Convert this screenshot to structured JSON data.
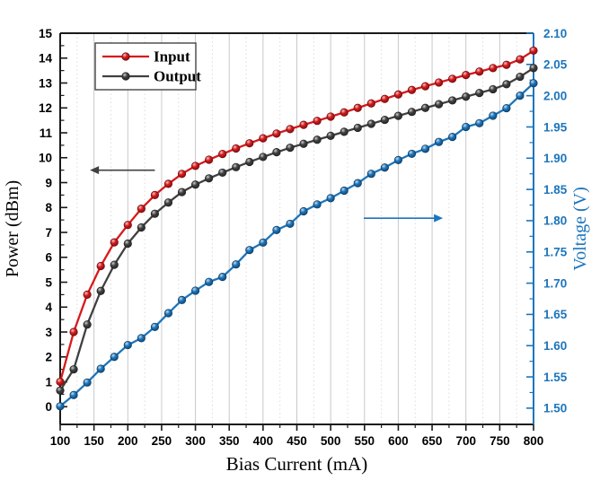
{
  "chart_data": {
    "type": "line",
    "title": "",
    "xlabel": "Bias Current (mA)",
    "ylabel_left": "Power (dBm)",
    "ylabel_right": "Voltage (V)",
    "x": [
      100,
      120,
      140,
      160,
      180,
      200,
      220,
      240,
      260,
      280,
      300,
      320,
      340,
      360,
      380,
      400,
      420,
      440,
      460,
      480,
      500,
      520,
      540,
      560,
      580,
      600,
      620,
      640,
      660,
      680,
      700,
      720,
      740,
      760,
      780,
      800
    ],
    "series": [
      {
        "name": "Input",
        "axis": "left",
        "color": "#d7191c",
        "in_legend": true,
        "values": [
          1.0,
          3.0,
          4.5,
          5.65,
          6.6,
          7.3,
          7.95,
          8.5,
          8.95,
          9.35,
          9.67,
          9.92,
          10.15,
          10.37,
          10.58,
          10.78,
          10.97,
          11.15,
          11.32,
          11.48,
          11.65,
          11.82,
          12.0,
          12.18,
          12.36,
          12.54,
          12.72,
          12.87,
          13.02,
          13.17,
          13.32,
          13.46,
          13.6,
          13.73,
          13.95,
          14.3
        ]
      },
      {
        "name": "Output",
        "axis": "left",
        "color": "#404040",
        "in_legend": true,
        "values": [
          0.65,
          1.5,
          3.3,
          4.65,
          5.7,
          6.55,
          7.2,
          7.75,
          8.2,
          8.62,
          8.92,
          9.17,
          9.4,
          9.62,
          9.83,
          10.03,
          10.22,
          10.4,
          10.56,
          10.72,
          10.88,
          11.04,
          11.2,
          11.36,
          11.52,
          11.68,
          11.84,
          12.0,
          12.15,
          12.3,
          12.45,
          12.6,
          12.75,
          12.95,
          13.25,
          13.6
        ]
      },
      {
        "name": "Voltage",
        "axis": "right",
        "color": "#1c75bc",
        "in_legend": false,
        "values": [
          1.503,
          1.521,
          1.541,
          1.563,
          1.582,
          1.601,
          1.612,
          1.63,
          1.652,
          1.673,
          1.688,
          1.702,
          1.71,
          1.73,
          1.753,
          1.765,
          1.785,
          1.795,
          1.815,
          1.826,
          1.836,
          1.848,
          1.86,
          1.875,
          1.885,
          1.897,
          1.907,
          1.915,
          1.926,
          1.934,
          1.95,
          1.956,
          1.968,
          1.98,
          2.0,
          2.02
        ]
      }
    ],
    "x_axis": {
      "range": [
        100,
        800
      ],
      "major_ticks": [
        100,
        150,
        200,
        250,
        300,
        350,
        400,
        450,
        500,
        550,
        600,
        650,
        700,
        750,
        800
      ],
      "minor_step": 25,
      "decimals": 0,
      "color": "#000000"
    },
    "left_axis": {
      "range_min": -0.71,
      "range_max": 15,
      "major_ticks": [
        0,
        1,
        2,
        3,
        4,
        5,
        6,
        7,
        8,
        9,
        10,
        11,
        12,
        13,
        14,
        15
      ],
      "minor_step": 0.5,
      "decimals": 0,
      "color": "#000000"
    },
    "right_axis": {
      "range_min": 1.474,
      "range_max": 2.1,
      "major_ticks": [
        1.5,
        1.55,
        1.6,
        1.65,
        1.7,
        1.75,
        1.8,
        1.85,
        1.9,
        1.95,
        2.0,
        2.05,
        2.1
      ],
      "minor_step": 0.025,
      "decimals": 2,
      "color": "#1c75bc"
    },
    "legend": {
      "entries": [
        "Input",
        "Output"
      ],
      "position": "top-left"
    },
    "annotations": [
      {
        "name": "left-axis-pointer-arrow",
        "axis": "left",
        "y_value": 9.5,
        "x_from": 240,
        "x_to": 144,
        "color": "#404040"
      },
      {
        "name": "right-axis-pointer-arrow",
        "axis": "right",
        "y_value": 1.804,
        "x_from": 549,
        "x_to": 666,
        "color": "#1c75bc"
      }
    ],
    "grid": {
      "vertical_major": true,
      "vertical_minor": true,
      "horizontal": false,
      "major_color": "#c8c8c8",
      "minor_color": "#dcdcdc"
    },
    "frame_color": "#1a1a1a",
    "background": "#ffffff"
  }
}
